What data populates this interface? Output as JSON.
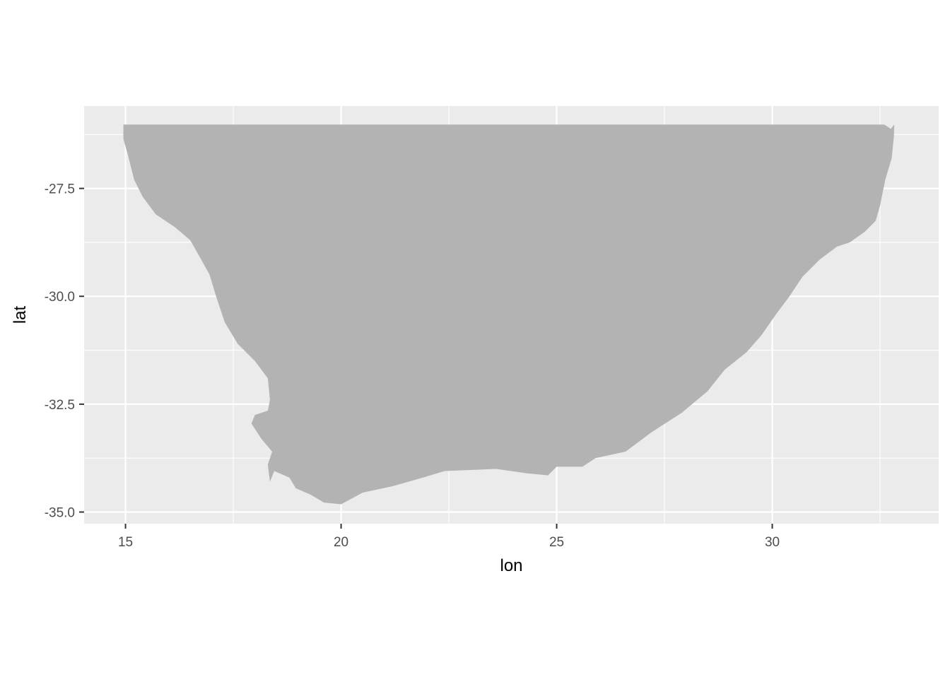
{
  "chart_data": {
    "type": "map",
    "title": "",
    "xlabel": "lon",
    "ylabel": "lat",
    "xlim": [
      14.04,
      33.86
    ],
    "ylim": [
      -35.27,
      -25.59
    ],
    "x_ticks": [
      {
        "value": 15,
        "label": "15"
      },
      {
        "value": 20,
        "label": "20"
      },
      {
        "value": 25,
        "label": "25"
      },
      {
        "value": 30,
        "label": "30"
      }
    ],
    "y_ticks": [
      {
        "value": -27.5,
        "label": "-27.5"
      },
      {
        "value": -30.0,
        "label": "-30.0"
      },
      {
        "value": -32.5,
        "label": "-32.5"
      },
      {
        "value": -35.0,
        "label": "-35.0"
      }
    ],
    "x_minor": [
      17.5,
      22.5,
      27.5,
      32.5
    ],
    "y_minor": [
      -26.25,
      -28.75,
      -31.25,
      -33.75
    ],
    "grid": true,
    "legend": "none",
    "colors": {
      "panel_background": "#ebebeb",
      "grid_line": "#ffffff",
      "land_fill": "#b3b3b3",
      "tick_text": "#4d4d4d",
      "axis_title": "#000000"
    },
    "land": {
      "name": "",
      "outline": [
        [
          14.95,
          -26.02
        ],
        [
          32.6,
          -26.02
        ],
        [
          32.75,
          -26.12
        ],
        [
          32.83,
          -26.02
        ],
        [
          32.82,
          -26.3
        ],
        [
          32.77,
          -26.8
        ],
        [
          32.62,
          -27.3
        ],
        [
          32.5,
          -27.9
        ],
        [
          32.4,
          -28.25
        ],
        [
          32.15,
          -28.5
        ],
        [
          31.8,
          -28.75
        ],
        [
          31.5,
          -28.85
        ],
        [
          31.1,
          -29.15
        ],
        [
          30.7,
          -29.55
        ],
        [
          30.4,
          -30.0
        ],
        [
          30.1,
          -30.4
        ],
        [
          29.75,
          -30.9
        ],
        [
          29.4,
          -31.3
        ],
        [
          28.9,
          -31.7
        ],
        [
          28.5,
          -32.2
        ],
        [
          27.9,
          -32.7
        ],
        [
          27.2,
          -33.15
        ],
        [
          26.6,
          -33.6
        ],
        [
          25.9,
          -33.75
        ],
        [
          25.6,
          -33.95
        ],
        [
          25.0,
          -33.95
        ],
        [
          24.8,
          -34.15
        ],
        [
          24.3,
          -34.1
        ],
        [
          23.6,
          -34.0
        ],
        [
          22.4,
          -34.05
        ],
        [
          21.9,
          -34.2
        ],
        [
          21.2,
          -34.4
        ],
        [
          20.5,
          -34.55
        ],
        [
          20.0,
          -34.82
        ],
        [
          19.6,
          -34.78
        ],
        [
          19.3,
          -34.6
        ],
        [
          18.95,
          -34.45
        ],
        [
          18.8,
          -34.2
        ],
        [
          18.45,
          -34.05
        ],
        [
          18.35,
          -34.3
        ],
        [
          18.3,
          -33.9
        ],
        [
          18.4,
          -33.6
        ],
        [
          18.15,
          -33.3
        ],
        [
          17.92,
          -32.95
        ],
        [
          18.0,
          -32.75
        ],
        [
          18.3,
          -32.65
        ],
        [
          18.35,
          -32.4
        ],
        [
          18.3,
          -31.9
        ],
        [
          18.0,
          -31.5
        ],
        [
          17.6,
          -31.1
        ],
        [
          17.3,
          -30.6
        ],
        [
          17.1,
          -30.0
        ],
        [
          16.95,
          -29.5
        ],
        [
          16.7,
          -29.05
        ],
        [
          16.5,
          -28.7
        ],
        [
          16.15,
          -28.4
        ],
        [
          15.7,
          -28.1
        ],
        [
          15.4,
          -27.7
        ],
        [
          15.2,
          -27.3
        ],
        [
          15.05,
          -26.7
        ],
        [
          14.95,
          -26.35
        ]
      ]
    }
  }
}
